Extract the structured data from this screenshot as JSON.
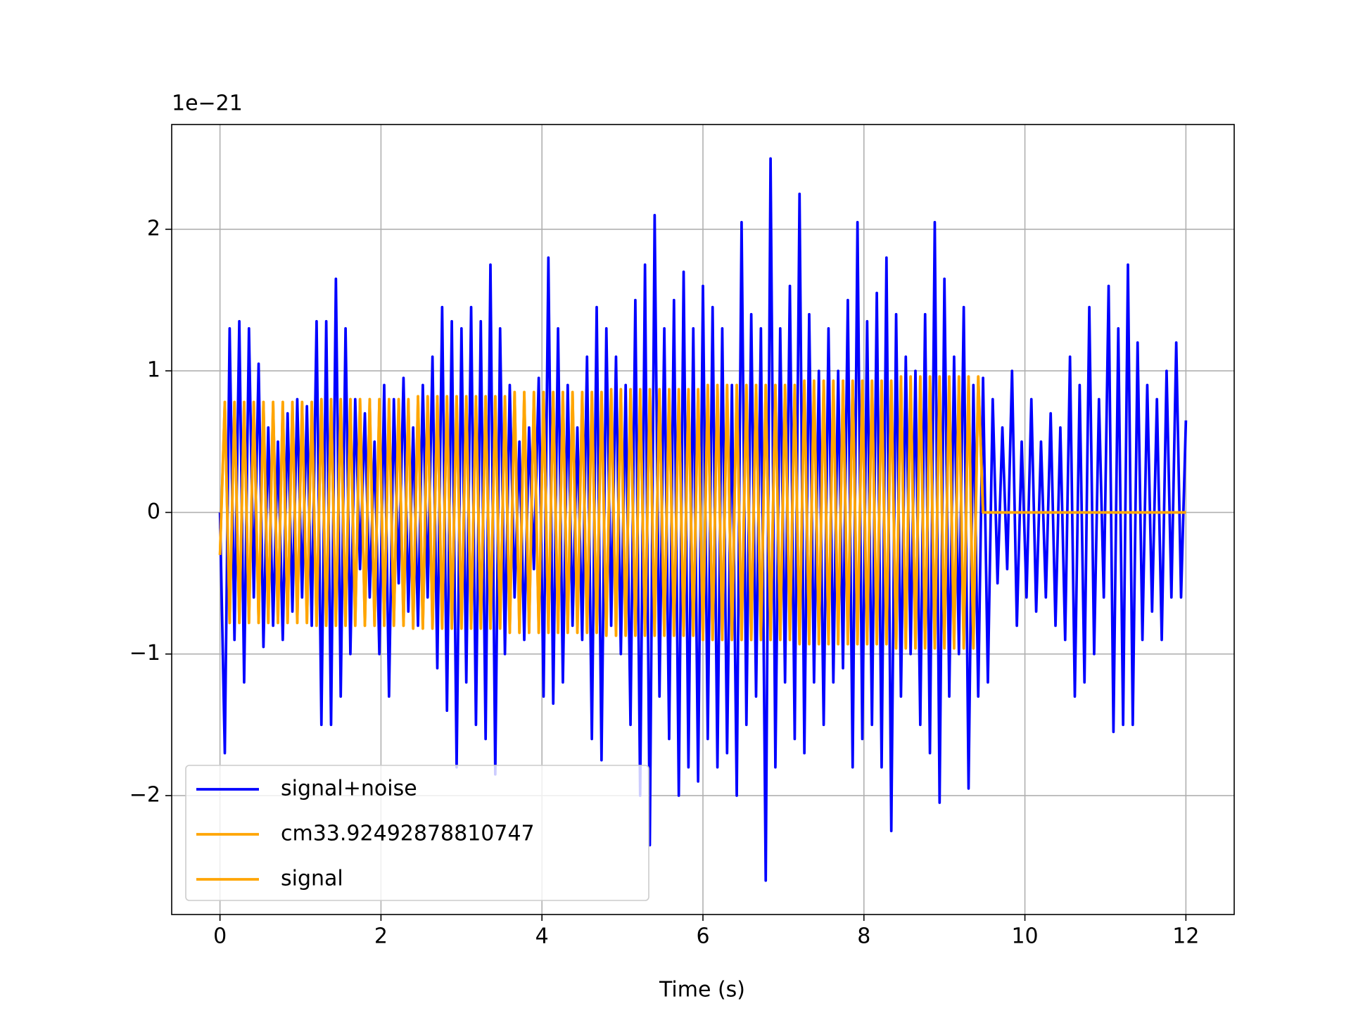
{
  "chart_data": {
    "type": "line",
    "y_offset_label": "1e−21",
    "xlabel": "Time (s)",
    "x": [
      0,
      0.06,
      0.12,
      0.18,
      0.24,
      0.3,
      0.36,
      0.42,
      0.48,
      0.54,
      0.6,
      0.66,
      0.72,
      0.78,
      0.84,
      0.9,
      0.96,
      1.02,
      1.08,
      1.14,
      1.2,
      1.26,
      1.32,
      1.38,
      1.44,
      1.5,
      1.56,
      1.62,
      1.68,
      1.74,
      1.8,
      1.86,
      1.92,
      1.98,
      2.04,
      2.1,
      2.16,
      2.22,
      2.28,
      2.34,
      2.4,
      2.46,
      2.52,
      2.58,
      2.64,
      2.7,
      2.76,
      2.82,
      2.88,
      2.94,
      3.0,
      3.06,
      3.12,
      3.18,
      3.24,
      3.3,
      3.36,
      3.42,
      3.48,
      3.54,
      3.6,
      3.66,
      3.72,
      3.78,
      3.84,
      3.9,
      3.96,
      4.02,
      4.08,
      4.14,
      4.2,
      4.26,
      4.32,
      4.38,
      4.44,
      4.5,
      4.56,
      4.62,
      4.68,
      4.74,
      4.8,
      4.86,
      4.92,
      4.98,
      5.04,
      5.1,
      5.16,
      5.22,
      5.28,
      5.34,
      5.4,
      5.46,
      5.52,
      5.58,
      5.64,
      5.7,
      5.76,
      5.82,
      5.88,
      5.94,
      6.0,
      6.06,
      6.12,
      6.18,
      6.24,
      6.3,
      6.36,
      6.42,
      6.48,
      6.54,
      6.6,
      6.66,
      6.72,
      6.78,
      6.84,
      6.9,
      6.96,
      7.02,
      7.08,
      7.14,
      7.2,
      7.26,
      7.32,
      7.38,
      7.44,
      7.5,
      7.56,
      7.62,
      7.68,
      7.74,
      7.8,
      7.86,
      7.92,
      7.98,
      8.04,
      8.1,
      8.16,
      8.22,
      8.28,
      8.34,
      8.4,
      8.46,
      8.52,
      8.58,
      8.64,
      8.7,
      8.76,
      8.82,
      8.88,
      8.94,
      9.0,
      9.06,
      9.12,
      9.18,
      9.24,
      9.3,
      9.36,
      9.42,
      9.48,
      9.54,
      9.6,
      9.66,
      9.72,
      9.78,
      9.84,
      9.9,
      9.96,
      10.02,
      10.08,
      10.14,
      10.2,
      10.26,
      10.32,
      10.38,
      10.44,
      10.5,
      10.56,
      10.62,
      10.68,
      10.74,
      10.8,
      10.86,
      10.92,
      10.98,
      11.04,
      11.1,
      11.16,
      11.22,
      11.28,
      11.34,
      11.4,
      11.46,
      11.52,
      11.58,
      11.64,
      11.7,
      11.76,
      11.82,
      11.88,
      11.94,
      12.0
    ],
    "series": [
      {
        "name": "signal+noise",
        "color": "#0000ff",
        "values": [
          0,
          -1.7,
          1.3,
          -0.9,
          1.35,
          -1.2,
          1.3,
          -0.6,
          1.05,
          -0.95,
          0.6,
          -0.8,
          0.5,
          -0.9,
          0.7,
          -0.7,
          0.8,
          -0.6,
          0.75,
          -0.8,
          1.35,
          -1.5,
          1.35,
          -1.5,
          1.65,
          -1.3,
          1.3,
          -1.0,
          0.8,
          -0.4,
          0.7,
          -0.6,
          0.5,
          -1.0,
          0.9,
          -1.3,
          0.8,
          -0.5,
          0.95,
          -0.7,
          0.6,
          -0.8,
          0.9,
          -0.6,
          1.1,
          -1.1,
          1.45,
          -1.4,
          1.35,
          -1.8,
          1.3,
          -1.2,
          1.45,
          -1.5,
          1.35,
          -1.6,
          1.75,
          -1.85,
          1.3,
          -1.0,
          0.9,
          -0.6,
          0.5,
          -0.9,
          0.6,
          -0.4,
          0.95,
          -1.3,
          1.8,
          -1.35,
          1.3,
          -1.2,
          0.9,
          -0.8,
          0.6,
          -0.9,
          1.1,
          -1.6,
          1.45,
          -1.75,
          1.3,
          -0.8,
          1.1,
          -1.0,
          0.9,
          -1.5,
          1.5,
          -2.0,
          1.75,
          -2.35,
          2.1,
          -1.3,
          1.3,
          -1.6,
          1.5,
          -2.0,
          1.7,
          -1.8,
          1.3,
          -1.9,
          1.6,
          -1.6,
          1.45,
          -1.8,
          1.3,
          -1.7,
          0.9,
          -2.0,
          2.05,
          -1.5,
          1.4,
          -1.3,
          1.3,
          -2.6,
          2.5,
          -1.8,
          1.3,
          -1.2,
          1.6,
          -1.6,
          2.25,
          -1.7,
          1.4,
          -1.2,
          1.0,
          -1.5,
          1.3,
          -1.2,
          1.0,
          -1.1,
          1.5,
          -1.8,
          2.05,
          -1.6,
          1.35,
          -1.5,
          1.55,
          -1.8,
          1.8,
          -2.25,
          1.4,
          -1.3,
          1.1,
          -1.0,
          1.0,
          -1.5,
          1.4,
          -1.7,
          2.05,
          -2.05,
          1.65,
          -1.3,
          1.1,
          -1.0,
          1.45,
          -1.95,
          0.9,
          -1.3,
          0.95,
          -1.2,
          0.8,
          -0.5,
          0.6,
          -0.4,
          1.0,
          -0.8,
          0.5,
          -0.6,
          0.8,
          -0.7,
          0.5,
          -0.6,
          0.7,
          -0.8,
          0.6,
          -0.9,
          1.1,
          -1.3,
          0.9,
          -1.2,
          1.45,
          -1.0,
          0.8,
          -0.6,
          1.6,
          -1.55,
          1.3,
          -1.5,
          1.75,
          -1.5,
          1.2,
          -0.9,
          0.9,
          -0.7,
          0.8,
          -0.9,
          1.0,
          -0.6,
          1.2,
          -0.6,
          0.65
        ]
      },
      {
        "name": "cm33.92492878810747",
        "color": "#ffa500",
        "values": [
          -0.3,
          0.78,
          -0.78,
          0.78,
          -0.78,
          0.78,
          -0.78,
          0.78,
          -0.78,
          0.78,
          -0.78,
          0.78,
          -0.78,
          0.78,
          -0.78,
          0.78,
          -0.78,
          0.78,
          -0.78,
          0.78,
          -0.8,
          0.8,
          -0.8,
          0.8,
          -0.8,
          0.8,
          -0.8,
          0.8,
          -0.8,
          0.8,
          -0.8,
          0.8,
          -0.8,
          0.8,
          -0.8,
          0.8,
          -0.8,
          0.8,
          -0.8,
          0.8,
          -0.82,
          0.82,
          -0.82,
          0.82,
          -0.82,
          0.82,
          -0.82,
          0.82,
          -0.82,
          0.82,
          -0.82,
          0.82,
          -0.82,
          0.82,
          -0.82,
          0.82,
          -0.82,
          0.82,
          -0.82,
          0.82,
          -0.85,
          0.85,
          -0.85,
          0.85,
          -0.85,
          0.85,
          -0.85,
          0.85,
          -0.85,
          0.85,
          -0.85,
          0.85,
          -0.85,
          0.85,
          -0.85,
          0.85,
          -0.85,
          0.85,
          -0.85,
          0.85,
          -0.87,
          0.87,
          -0.87,
          0.87,
          -0.87,
          0.87,
          -0.87,
          0.87,
          -0.87,
          0.87,
          -0.87,
          0.87,
          -0.87,
          0.87,
          -0.87,
          0.87,
          -0.87,
          0.87,
          -0.87,
          0.87,
          -0.9,
          0.9,
          -0.9,
          0.9,
          -0.9,
          0.9,
          -0.9,
          0.9,
          -0.9,
          0.9,
          -0.9,
          0.9,
          -0.9,
          0.9,
          -0.9,
          0.9,
          -0.9,
          0.9,
          -0.9,
          0.9,
          -0.93,
          0.93,
          -0.93,
          0.93,
          -0.93,
          0.93,
          -0.93,
          0.93,
          -0.93,
          0.93,
          -0.93,
          0.93,
          -0.93,
          0.93,
          -0.93,
          0.93,
          -0.93,
          0.93,
          -0.93,
          0.93,
          -0.96,
          0.96,
          -0.96,
          0.96,
          -0.96,
          0.96,
          -0.96,
          0.96,
          -0.96,
          0.96,
          -0.96,
          0.96,
          -0.96,
          0.96,
          -0.96,
          0.96,
          -0.96,
          0.96,
          0,
          0,
          0,
          0,
          0,
          0,
          0,
          0,
          0,
          0,
          0,
          0,
          0,
          0,
          0,
          0,
          0,
          0,
          0,
          0,
          0,
          0,
          0,
          0,
          0,
          0,
          0,
          0,
          0,
          0,
          0,
          0,
          0,
          0,
          0,
          0,
          0,
          0,
          0,
          0,
          0,
          0,
          0
        ]
      },
      {
        "name": "signal",
        "color": "#ffa500",
        "values": [
          -0.3,
          0.78,
          -0.78,
          0.78,
          -0.78,
          0.78,
          -0.78,
          0.78,
          -0.78,
          0.78,
          -0.78,
          0.78,
          -0.78,
          0.78,
          -0.78,
          0.78,
          -0.78,
          0.78,
          -0.78,
          0.78,
          -0.8,
          0.8,
          -0.8,
          0.8,
          -0.8,
          0.8,
          -0.8,
          0.8,
          -0.8,
          0.8,
          -0.8,
          0.8,
          -0.8,
          0.8,
          -0.8,
          0.8,
          -0.8,
          0.8,
          -0.8,
          0.8,
          -0.82,
          0.82,
          -0.82,
          0.82,
          -0.82,
          0.82,
          -0.82,
          0.82,
          -0.82,
          0.82,
          -0.82,
          0.82,
          -0.82,
          0.82,
          -0.82,
          0.82,
          -0.82,
          0.82,
          -0.82,
          0.82,
          -0.85,
          0.85,
          -0.85,
          0.85,
          -0.85,
          0.85,
          -0.85,
          0.85,
          -0.85,
          0.85,
          -0.85,
          0.85,
          -0.85,
          0.85,
          -0.85,
          0.85,
          -0.85,
          0.85,
          -0.85,
          0.85,
          -0.87,
          0.87,
          -0.87,
          0.87,
          -0.87,
          0.87,
          -0.87,
          0.87,
          -0.87,
          0.87,
          -0.87,
          0.87,
          -0.87,
          0.87,
          -0.87,
          0.87,
          -0.87,
          0.87,
          -0.87,
          0.87,
          -0.9,
          0.9,
          -0.9,
          0.9,
          -0.9,
          0.9,
          -0.9,
          0.9,
          -0.9,
          0.9,
          -0.9,
          0.9,
          -0.9,
          0.9,
          -0.9,
          0.9,
          -0.9,
          0.9,
          -0.9,
          0.9,
          -0.93,
          0.93,
          -0.93,
          0.93,
          -0.93,
          0.93,
          -0.93,
          0.93,
          -0.93,
          0.93,
          -0.93,
          0.93,
          -0.93,
          0.93,
          -0.93,
          0.93,
          -0.93,
          0.93,
          -0.93,
          0.93,
          -0.96,
          0.96,
          -0.96,
          0.96,
          -0.96,
          0.96,
          -0.96,
          0.96,
          -0.96,
          0.96,
          -0.96,
          0.96,
          -0.96,
          0.96,
          -0.96,
          0.96,
          -0.96,
          0.96,
          0,
          0,
          0,
          0,
          0,
          0,
          0,
          0,
          0,
          0,
          0,
          0,
          0,
          0,
          0,
          0,
          0,
          0,
          0,
          0,
          0,
          0,
          0,
          0,
          0,
          0,
          0,
          0,
          0,
          0,
          0,
          0,
          0,
          0,
          0,
          0,
          0,
          0,
          0,
          0,
          0,
          0,
          0
        ]
      }
    ],
    "xlim": [
      -0.6,
      12.6
    ],
    "ylim": [
      -2.84,
      2.74
    ],
    "xticks": [
      0,
      2,
      4,
      6,
      8,
      10,
      12
    ],
    "yticks": [
      {
        "value": -2,
        "label": "−2"
      },
      {
        "value": -1,
        "label": "−1"
      },
      0,
      1,
      2
    ],
    "grid": true,
    "legend": "lower left"
  }
}
